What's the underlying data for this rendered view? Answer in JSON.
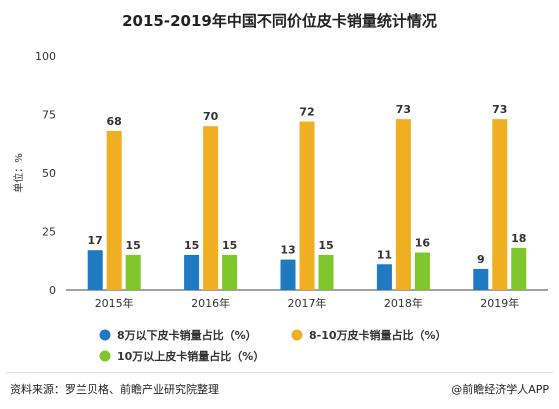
{
  "title": "2015-2019年中国不同价位皮卡销量统计情况",
  "source": "资料来源：罗兰贝格、前瞻产业研究院整理",
  "brand": "@前瞻经济学人APP",
  "chart_data": {
    "type": "bar",
    "categories": [
      "2015年",
      "2016年",
      "2017年",
      "2018年",
      "2019年"
    ],
    "series": [
      {
        "name": "8万以下皮卡销量占比（%）",
        "values": [
          17,
          15,
          13,
          11,
          9
        ],
        "color": "#1f7ac2"
      },
      {
        "name": "8-10万皮卡销量占比（%）",
        "values": [
          68,
          70,
          72,
          73,
          73
        ],
        "color": "#f0ae22"
      },
      {
        "name": "10万以上皮卡销量占比（%）",
        "values": [
          15,
          15,
          15,
          16,
          18
        ],
        "color": "#7ec62b"
      }
    ],
    "yticks": [
      0,
      25,
      50,
      75,
      100
    ],
    "ylim": [
      0,
      100
    ],
    "ylabel": "单位：%",
    "xlabel": "",
    "grid": false,
    "legend": "bottom"
  }
}
